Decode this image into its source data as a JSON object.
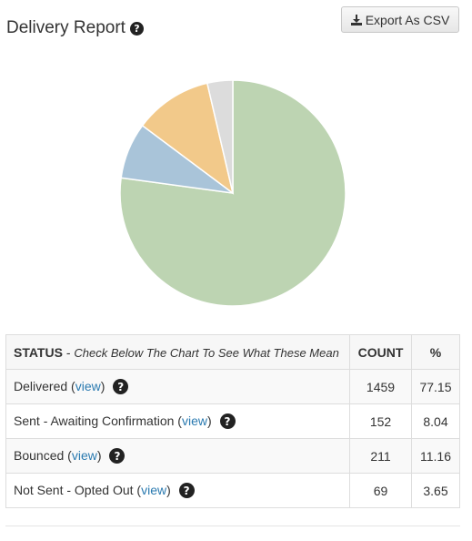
{
  "header": {
    "title": "Delivery Report",
    "help_icon": "question-circle-icon"
  },
  "toolbar": {
    "export_label": "Export As CSV",
    "export_icon": "download-icon"
  },
  "chart_data": {
    "type": "pie",
    "title": "",
    "slices": [
      {
        "label": "Delivered",
        "value": 1459,
        "percent": 77.15,
        "color": "#bdd4b2"
      },
      {
        "label": "Sent - Awaiting Confirmation",
        "value": 152,
        "percent": 8.04,
        "color": "#a9c4d9"
      },
      {
        "label": "Bounced",
        "value": 211,
        "percent": 11.16,
        "color": "#f2c98a"
      },
      {
        "label": "Not Sent - Opted Out",
        "value": 69,
        "percent": 3.65,
        "color": "#dcdcdc"
      }
    ]
  },
  "table": {
    "headers": {
      "status_bold": "STATUS",
      "status_note": "Check Below The Chart To See What These Mean",
      "count": "COUNT",
      "percent": "%"
    },
    "rows": [
      {
        "status": "Delivered",
        "view": "view",
        "count": "1459",
        "percent": "77.15"
      },
      {
        "status": "Sent - Awaiting Confirmation",
        "view": "view",
        "count": "152",
        "percent": "8.04"
      },
      {
        "status": "Bounced",
        "view": "view",
        "count": "211",
        "percent": "11.16"
      },
      {
        "status": "Not Sent - Opted Out",
        "view": "view",
        "count": "69",
        "percent": "3.65"
      }
    ]
  }
}
